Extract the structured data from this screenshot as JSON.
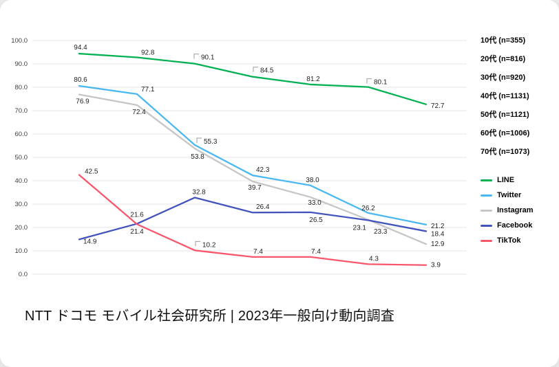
{
  "chart_data": {
    "type": "line",
    "categories": [
      "10代",
      "20代",
      "30代",
      "40代",
      "50代",
      "60代",
      "70代"
    ],
    "series": [
      {
        "name": "LINE",
        "color": "#00b152",
        "values": [
          "94.4",
          "92.8",
          "90.1",
          "84.5",
          "81.2",
          "80.1",
          "72.7"
        ]
      },
      {
        "name": "Twitter",
        "color": "#4ab8f0",
        "values": [
          "80.6",
          "77.1",
          "55.3",
          "42.3",
          "38.0",
          "26.2",
          "21.2"
        ]
      },
      {
        "name": "Instagram",
        "color": "#c6c6c6",
        "values": [
          "76.9",
          "72.4",
          "53.8",
          "39.7",
          "33.0",
          "23.3",
          "12.9"
        ]
      },
      {
        "name": "Facebook",
        "color": "#4353bd",
        "values": [
          "14.9",
          "21.6",
          "32.8",
          "26.4",
          "26.5",
          "23.1",
          "18.4"
        ]
      },
      {
        "name": "TikTok",
        "color": "#f9556b",
        "values": [
          "42.5",
          "21.4",
          "10.2",
          "7.4",
          "7.4",
          "4.3",
          "3.9"
        ]
      }
    ],
    "title": "",
    "xlabel": "",
    "ylabel": "",
    "ylim": [
      0,
      100
    ],
    "ytick_step": 10,
    "ytick_format": "one_decimal",
    "grid": true,
    "legend_position": "right"
  },
  "sample_sizes": [
    "10代 (n=355)",
    "20代 (n=816)",
    "30代 (n=920)",
    "40代 (n=1131)",
    "50代 (n=1121)",
    "60代 (n=1006)",
    "70代 (n=1073)"
  ],
  "caption": "NTT ドコモ モバイル社会研究所 | 2023年一般向け動向調査"
}
